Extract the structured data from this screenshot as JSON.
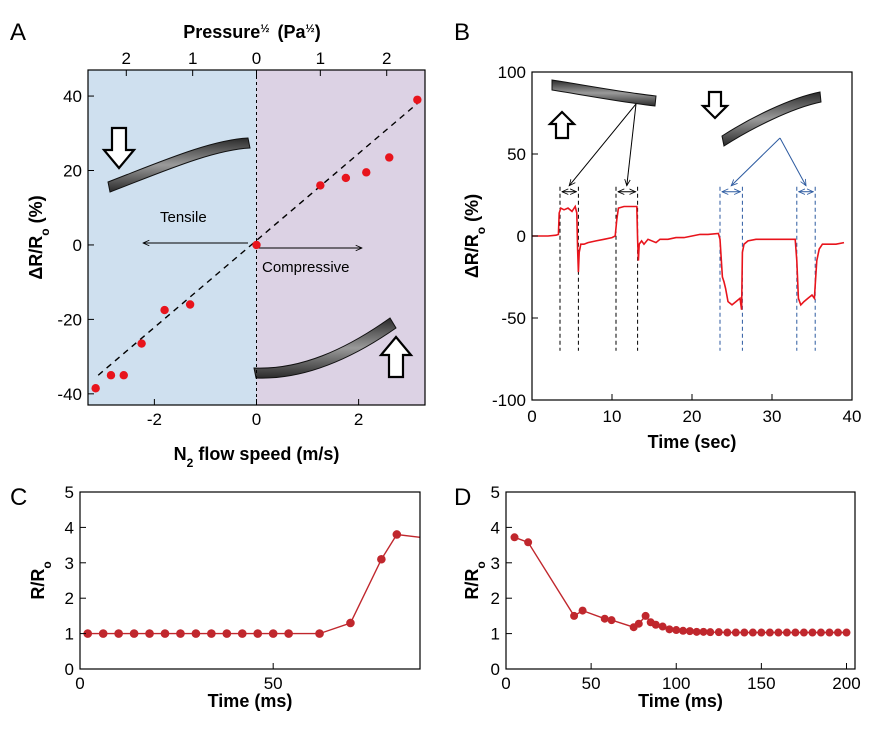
{
  "panels": {
    "a": "A",
    "b": "B",
    "c": "C",
    "d": "D"
  },
  "colors": {
    "marker": "#e8141c",
    "markerDark": "#c0272d",
    "tensileBg": "#cfe0ef",
    "compressiveBg": "#dcd2e4",
    "trace": "#e8141c",
    "guideBlack": "#000000",
    "guideBlue": "#2c5aa0"
  },
  "chart_data": [
    {
      "id": "A",
      "type": "scatter",
      "xlabel": "N",
      "xlabel_sub": "2",
      "xlabel_rest": " flow speed (m/s)",
      "ylabel": "ΔR/R",
      "ylabel_sub": "o",
      "ylabel_rest": " (%)",
      "top_axis_label": "Pressure",
      "top_axis_sup": "½",
      "top_axis_unit": "(Pa",
      "top_axis_unit_sup": "½",
      "top_axis_unit_close": ")",
      "xlim": [
        -3.3,
        3.3
      ],
      "ylim": [
        -43,
        47
      ],
      "xticks": [
        -2,
        0,
        2
      ],
      "xtick_labels": [
        "-2",
        "0",
        "2"
      ],
      "yticks": [
        -40,
        -20,
        0,
        20,
        40
      ],
      "ytick_labels": [
        "-40",
        "-20",
        "0",
        "20",
        "40"
      ],
      "top_ticks": [
        -2.55,
        -1.25,
        0,
        1.25,
        2.55
      ],
      "top_tick_labels": [
        "2",
        "1",
        "0",
        "1",
        "2"
      ],
      "points": [
        {
          "x": -3.15,
          "y": -38.5
        },
        {
          "x": -2.85,
          "y": -35
        },
        {
          "x": -2.6,
          "y": -35
        },
        {
          "x": -2.25,
          "y": -26.5
        },
        {
          "x": -1.8,
          "y": -17.5
        },
        {
          "x": -1.3,
          "y": -16
        },
        {
          "x": 0,
          "y": 0
        },
        {
          "x": 1.25,
          "y": 16
        },
        {
          "x": 1.75,
          "y": 18
        },
        {
          "x": 2.15,
          "y": 19.5
        },
        {
          "x": 2.6,
          "y": 23.5
        },
        {
          "x": 3.15,
          "y": 39
        }
      ],
      "fit": {
        "x": [
          -3.1,
          3.15
        ],
        "y": [
          -35,
          38
        ]
      },
      "labels": {
        "tensile": "Tensile",
        "compressive": "Compressive"
      }
    },
    {
      "id": "B",
      "type": "line",
      "xlabel": "Time (sec)",
      "ylabel": "ΔR/R",
      "ylabel_sub": "o",
      "ylabel_rest": " (%)",
      "xlim": [
        0,
        40
      ],
      "ylim": [
        -100,
        100
      ],
      "xticks": [
        0,
        10,
        20,
        30,
        40
      ],
      "xtick_labels": [
        "0",
        "10",
        "20",
        "30",
        "40"
      ],
      "yticks": [
        -100,
        -50,
        0,
        50,
        100
      ],
      "ytick_labels": [
        "-100",
        "-50",
        "0",
        "50",
        "100"
      ],
      "trace": [
        [
          0,
          0
        ],
        [
          1,
          0
        ],
        [
          2,
          0
        ],
        [
          3,
          0.5
        ],
        [
          3.3,
          1
        ],
        [
          3.4,
          14
        ],
        [
          3.6,
          17
        ],
        [
          4,
          16
        ],
        [
          4.5,
          17
        ],
        [
          5,
          15
        ],
        [
          5.4,
          18
        ],
        [
          5.6,
          14
        ],
        [
          5.7,
          -8
        ],
        [
          5.8,
          -22
        ],
        [
          5.9,
          -10
        ],
        [
          6.1,
          -5
        ],
        [
          6.5,
          -5
        ],
        [
          7,
          -4
        ],
        [
          8,
          -3
        ],
        [
          9,
          -2
        ],
        [
          10,
          -1
        ],
        [
          10.4,
          0
        ],
        [
          10.6,
          10
        ],
        [
          10.8,
          17
        ],
        [
          11.5,
          18
        ],
        [
          12.5,
          18
        ],
        [
          13.1,
          18
        ],
        [
          13.2,
          -2
        ],
        [
          13.3,
          -15
        ],
        [
          13.4,
          -5
        ],
        [
          13.7,
          -3
        ],
        [
          14,
          -5
        ],
        [
          14.5,
          -2
        ],
        [
          15.5,
          -4
        ],
        [
          16,
          -2
        ],
        [
          17,
          -2
        ],
        [
          18,
          -1
        ],
        [
          19,
          -1
        ],
        [
          20,
          0
        ],
        [
          21,
          1
        ],
        [
          22,
          1
        ],
        [
          23.3,
          1.5
        ],
        [
          23.5,
          -2
        ],
        [
          23.8,
          -25
        ],
        [
          24,
          -28
        ],
        [
          24.2,
          -32
        ],
        [
          24.5,
          -40
        ],
        [
          25,
          -42
        ],
        [
          25.5,
          -40
        ],
        [
          26,
          -38
        ],
        [
          26.2,
          -45
        ],
        [
          26.3,
          -10
        ],
        [
          26.5,
          -5
        ],
        [
          27,
          -3
        ],
        [
          28,
          -2
        ],
        [
          29,
          -2
        ],
        [
          30,
          -2
        ],
        [
          31,
          -2
        ],
        [
          32,
          -2
        ],
        [
          32.9,
          -2
        ],
        [
          33.1,
          -15
        ],
        [
          33.3,
          -38
        ],
        [
          33.6,
          -42
        ],
        [
          34,
          -40
        ],
        [
          34.5,
          -38
        ],
        [
          35,
          -36
        ],
        [
          35.3,
          -38
        ],
        [
          35.4,
          -30
        ],
        [
          35.6,
          -15
        ],
        [
          35.9,
          -8
        ],
        [
          36.3,
          -5
        ],
        [
          37,
          -5
        ],
        [
          38,
          -5
        ],
        [
          39,
          -4
        ]
      ],
      "guides_black": [
        3.5,
        5.8,
        10.5,
        13.2
      ],
      "guides_blue": [
        23.5,
        26.3,
        33.1,
        35.4
      ]
    },
    {
      "id": "C",
      "type": "line",
      "xlabel": "Time (ms)",
      "ylabel": "R/R",
      "ylabel_sub": "o",
      "xlim": [
        0,
        88
      ],
      "ylim": [
        0,
        5
      ],
      "xticks": [
        0,
        50
      ],
      "xtick_labels": [
        "0",
        "50"
      ],
      "yticks": [
        0,
        1,
        2,
        3,
        4,
        5
      ],
      "ytick_labels": [
        "0",
        "1",
        "2",
        "3",
        "4",
        "5"
      ],
      "x": [
        2,
        6,
        10,
        14,
        18,
        22,
        26,
        30,
        34,
        38,
        42,
        46,
        50,
        54,
        62,
        70,
        78,
        82,
        88
      ],
      "y": [
        1,
        1,
        1,
        1,
        1,
        1,
        1,
        1,
        1,
        1,
        1,
        1,
        1,
        1,
        1,
        1.3,
        3.1,
        3.8,
        3.72
      ],
      "markers_until": 18
    },
    {
      "id": "D",
      "type": "line",
      "xlabel": "Time (ms)",
      "ylabel": "R/R",
      "ylabel_sub": "o",
      "xlim": [
        0,
        205
      ],
      "ylim": [
        0,
        5
      ],
      "xticks": [
        0,
        50,
        100,
        150,
        200
      ],
      "xtick_labels": [
        "0",
        "50",
        "100",
        "150",
        "200"
      ],
      "yticks": [
        0,
        1,
        2,
        3,
        4,
        5
      ],
      "ytick_labels": [
        "0",
        "1",
        "2",
        "3",
        "4",
        "5"
      ],
      "x": [
        5,
        13,
        40,
        45,
        58,
        62,
        75,
        78,
        82,
        85,
        88,
        92,
        96,
        100,
        104,
        108,
        112,
        116,
        120,
        125,
        130,
        135,
        140,
        145,
        150,
        155,
        160,
        165,
        170,
        175,
        180,
        185,
        190,
        195,
        200
      ],
      "y": [
        3.72,
        3.58,
        1.5,
        1.65,
        1.42,
        1.38,
        1.18,
        1.28,
        1.5,
        1.32,
        1.25,
        1.2,
        1.12,
        1.1,
        1.08,
        1.07,
        1.05,
        1.05,
        1.04,
        1.04,
        1.03,
        1.03,
        1.03,
        1.03,
        1.03,
        1.03,
        1.03,
        1.03,
        1.03,
        1.03,
        1.03,
        1.03,
        1.03,
        1.03,
        1.03
      ]
    }
  ]
}
